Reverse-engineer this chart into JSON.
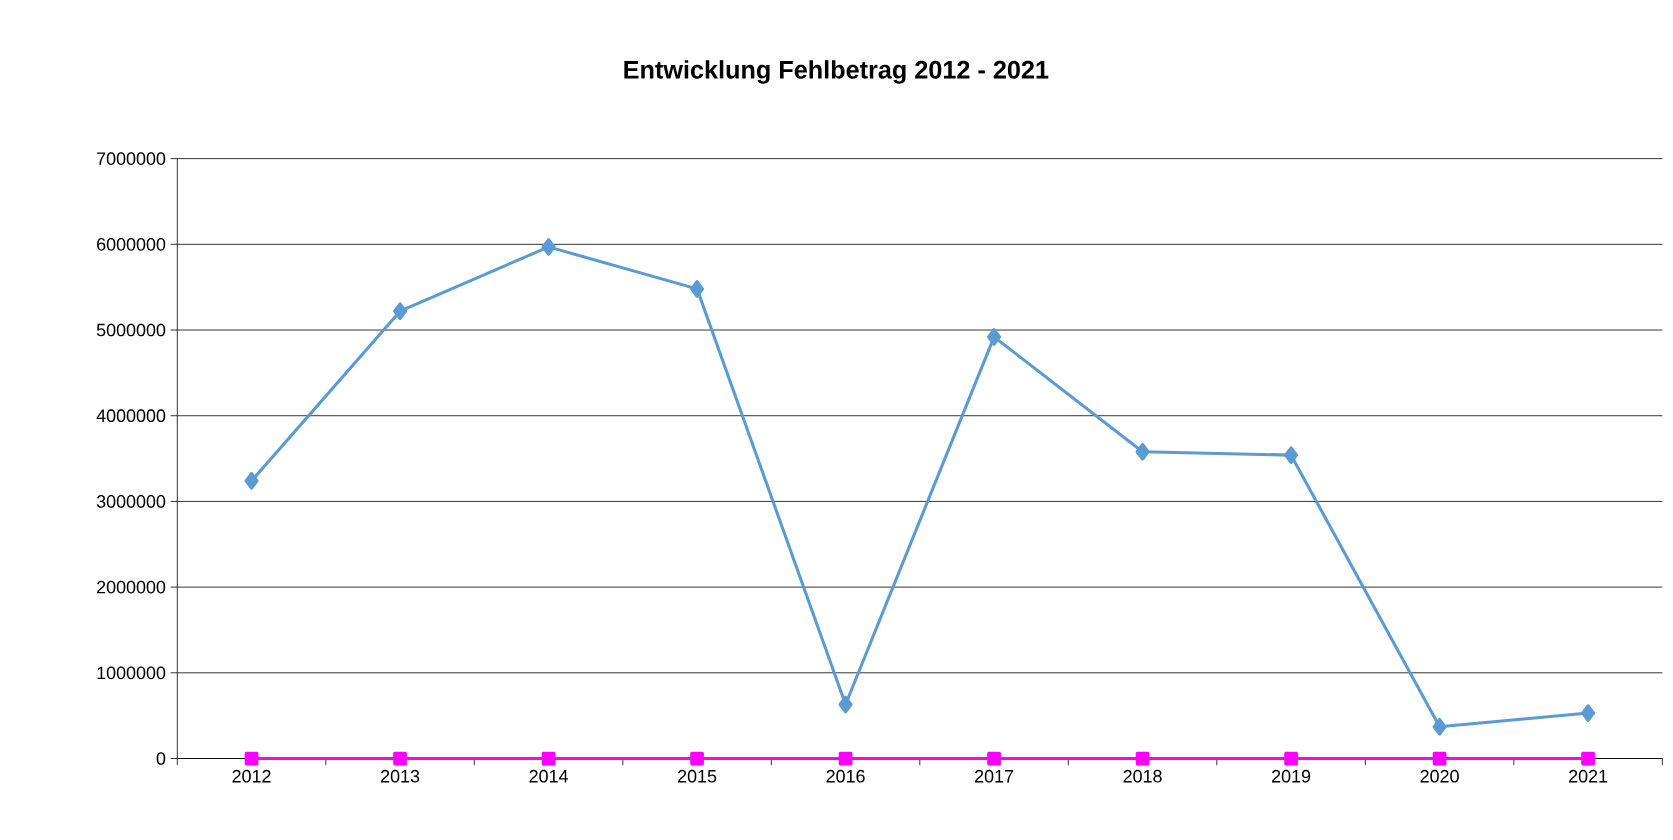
{
  "chart_data": {
    "type": "line",
    "title": "Entwicklung Fehlbetrag 2012 - 2021",
    "categories": [
      "2012",
      "2013",
      "2014",
      "2015",
      "2016",
      "2017",
      "2018",
      "2019",
      "2020",
      "2021"
    ],
    "series": [
      {
        "color": "#5b9bd5",
        "marker": "diamond",
        "values": [
          3240000,
          5220000,
          5970000,
          5480000,
          630000,
          4920000,
          3580000,
          3540000,
          370000,
          530000
        ]
      },
      {
        "color": "#ff00ff",
        "marker": "square",
        "values": [
          0,
          0,
          0,
          0,
          0,
          0,
          0,
          0,
          0,
          0
        ]
      }
    ],
    "ylim": [
      0,
      7000000
    ],
    "yticks": [
      0,
      1000000,
      2000000,
      3000000,
      4000000,
      5000000,
      6000000,
      7000000
    ],
    "grid": "y",
    "legend": false,
    "line_style": "solid"
  }
}
